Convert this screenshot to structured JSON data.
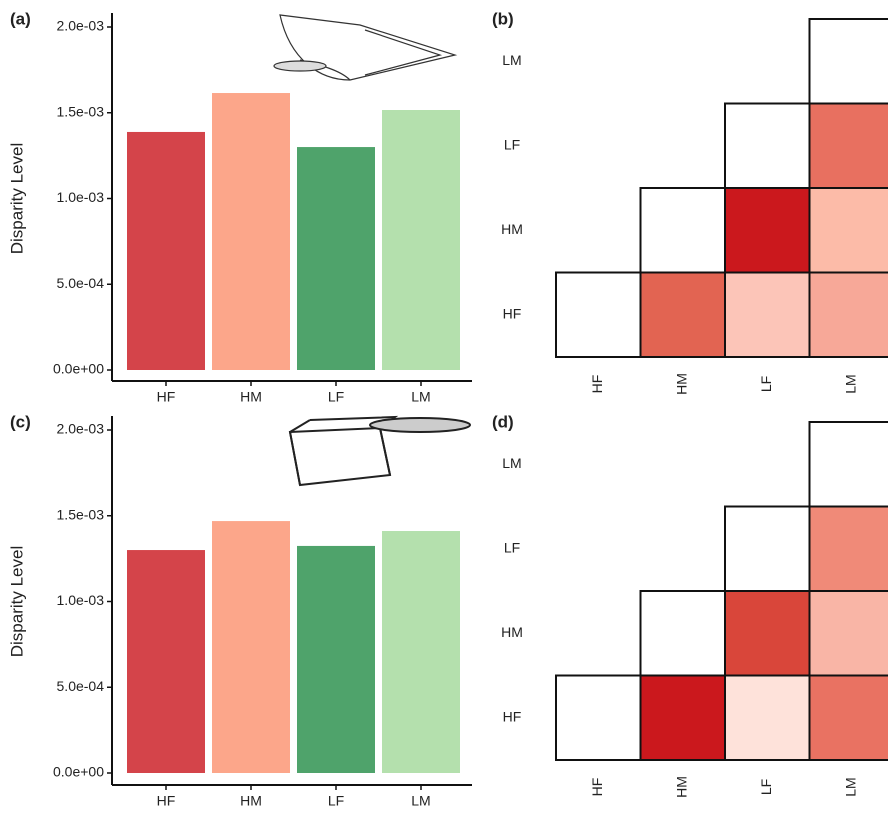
{
  "chart_data": [
    {
      "type": "bar",
      "label": "(a)",
      "ylabel": "Disparity Level",
      "categories": [
        "HF",
        "HM",
        "LF",
        "LM"
      ],
      "values": [
        0.001388,
        0.001615,
        0.0013,
        0.001516
      ],
      "colors": [
        "#d4444a",
        "#fca68a",
        "#4fa36b",
        "#b4e0ad"
      ],
      "ylim": [
        0,
        0.002
      ],
      "yticks": [
        {
          "value": 0,
          "label": "0.0e+00"
        },
        {
          "value": 0.0005,
          "label": "5.0e-04"
        },
        {
          "value": 0.001,
          "label": "1.0e-03"
        },
        {
          "value": 0.0015,
          "label": "1.5e-03"
        },
        {
          "value": 0.002,
          "label": "2.0e-03"
        }
      ]
    },
    {
      "type": "heatmap",
      "label": "(b)",
      "rows": [
        "LM",
        "LF",
        "HM",
        "HF"
      ],
      "columns": [
        "HF",
        "HM",
        "LF",
        "LM"
      ],
      "colors": [
        [
          null,
          null,
          null,
          "#ffffff"
        ],
        [
          null,
          null,
          "#ffffff",
          "#e87060"
        ],
        [
          null,
          "#ffffff",
          "#cb181d",
          "#fcbba8"
        ],
        [
          "#ffffff",
          "#e26452",
          "#fcc5b8",
          "#f7a898"
        ]
      ]
    },
    {
      "type": "bar",
      "label": "(c)",
      "ylabel": "Disparity Level",
      "categories": [
        "HF",
        "HM",
        "LF",
        "LM"
      ],
      "values": [
        0.0013,
        0.001469,
        0.001324,
        0.001411
      ],
      "colors": [
        "#d4444a",
        "#fca68a",
        "#4fa36b",
        "#b4e0ad"
      ],
      "ylim": [
        0,
        0.002
      ],
      "yticks": [
        {
          "value": 0,
          "label": "0.0e+00"
        },
        {
          "value": 0.0005,
          "label": "5.0e-04"
        },
        {
          "value": 0.001,
          "label": "1.0e-03"
        },
        {
          "value": 0.0015,
          "label": "1.5e-03"
        },
        {
          "value": 0.002,
          "label": "2.0e-03"
        }
      ]
    },
    {
      "type": "heatmap",
      "label": "(d)",
      "rows": [
        "LM",
        "LF",
        "HM",
        "HF"
      ],
      "columns": [
        "HF",
        "HM",
        "LF",
        "LM"
      ],
      "colors": [
        [
          null,
          null,
          null,
          "#ffffff"
        ],
        [
          null,
          null,
          "#ffffff",
          "#f08a78"
        ],
        [
          null,
          "#ffffff",
          "#d9463a",
          "#f9b5a6"
        ],
        [
          "#ffffff",
          "#cb181d",
          "#fee2da",
          "#e97262"
        ]
      ]
    }
  ]
}
